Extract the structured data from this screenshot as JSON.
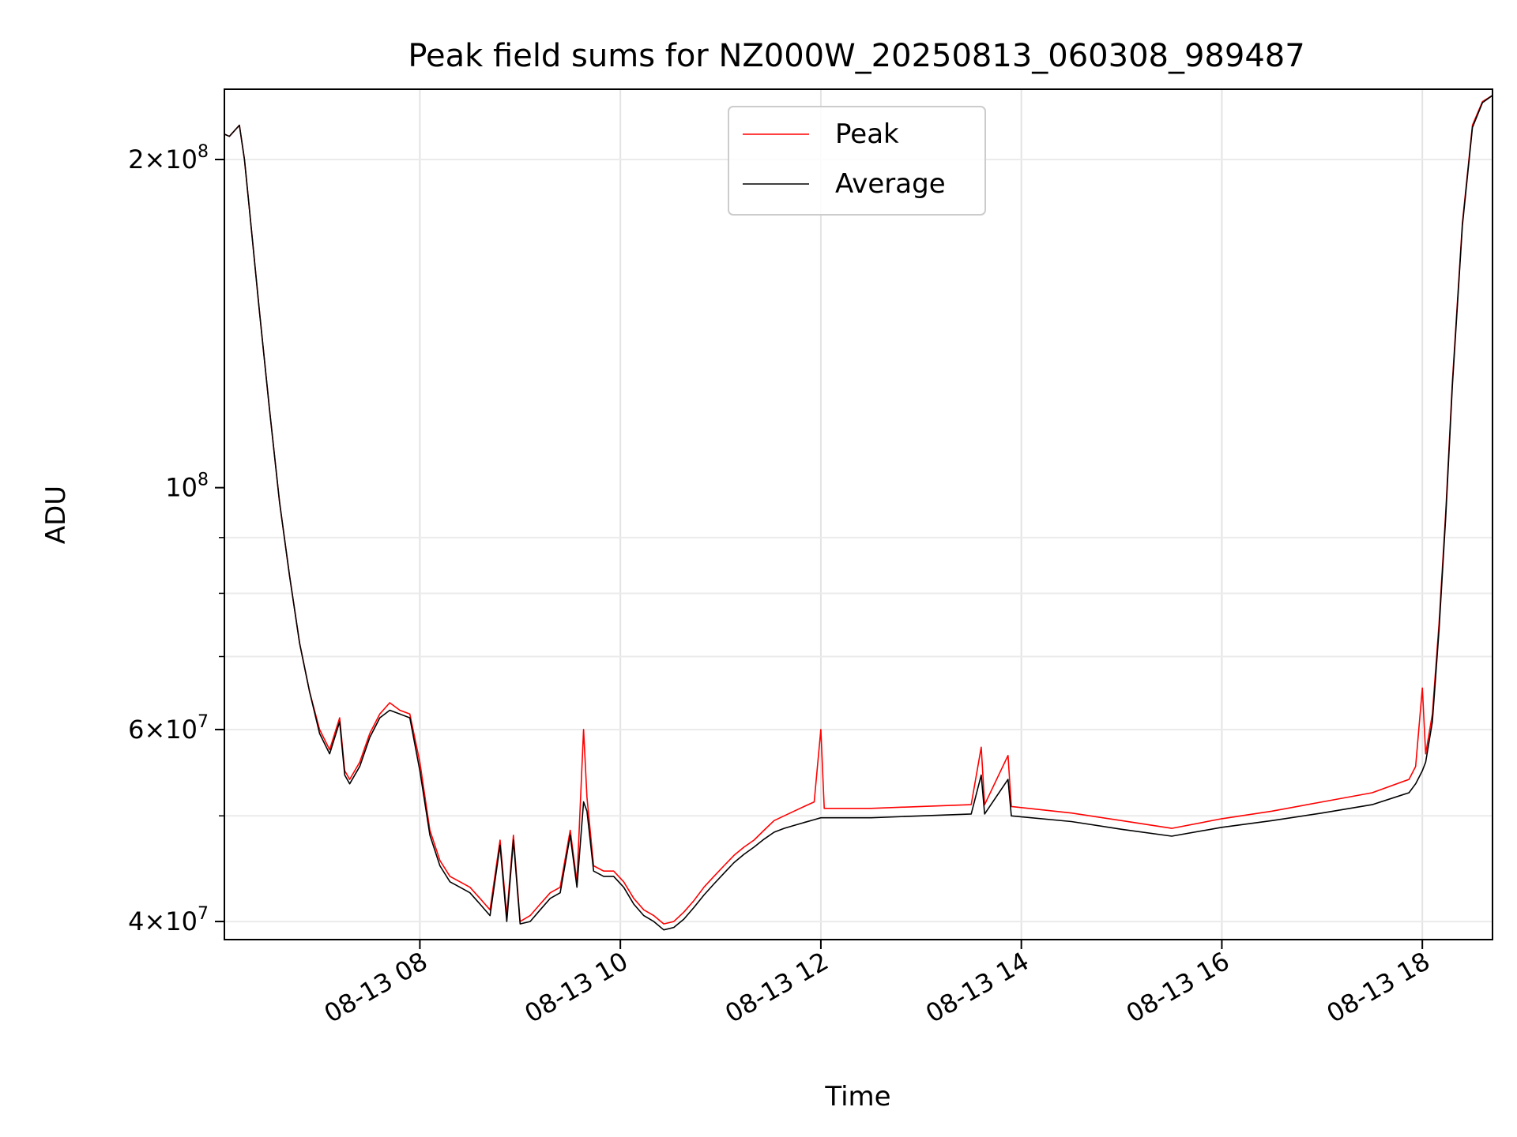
{
  "chart_data": {
    "type": "line",
    "title": "Peak field sums for NZ000W_20250813_060308_989487",
    "xlabel": "Time",
    "ylabel": "ADU",
    "xlim": [
      "2025-08-13 06:03",
      "2025-08-13 18:42"
    ],
    "ylim": [
      38500000,
      232000000
    ],
    "yscale": "log",
    "grid": true,
    "legend_position": "upper center",
    "x_ticks": [
      "08-13 08",
      "08-13 10",
      "08-13 12",
      "08-13 14",
      "08-13 16",
      "08-13 18"
    ],
    "y_ticks": [
      {
        "value": 40000000,
        "mantissa": "4",
        "exp": "7"
      },
      {
        "value": 60000000,
        "mantissa": "6",
        "exp": "7"
      },
      {
        "value": 100000000,
        "mantissa": "",
        "exp": "8"
      },
      {
        "value": 200000000,
        "mantissa": "2",
        "exp": "8"
      }
    ],
    "series": [
      {
        "name": "Peak",
        "color": "#ff0000",
        "points": [
          [
            "2025-08-13 06:03",
            211000000
          ],
          [
            "2025-08-13 06:06",
            210000000
          ],
          [
            "2025-08-13 06:12",
            215000000
          ],
          [
            "2025-08-13 06:15",
            200000000
          ],
          [
            "2025-08-13 06:18",
            180000000
          ],
          [
            "2025-08-13 06:24",
            145000000
          ],
          [
            "2025-08-13 06:30",
            118000000
          ],
          [
            "2025-08-13 06:36",
            97000000
          ],
          [
            "2025-08-13 06:42",
            83000000
          ],
          [
            "2025-08-13 06:48",
            72000000
          ],
          [
            "2025-08-13 06:54",
            65000000
          ],
          [
            "2025-08-13 07:00",
            60000000
          ],
          [
            "2025-08-13 07:06",
            57500000
          ],
          [
            "2025-08-13 07:12",
            61500000
          ],
          [
            "2025-08-13 07:15",
            55000000
          ],
          [
            "2025-08-13 07:18",
            54000000
          ],
          [
            "2025-08-13 07:24",
            56000000
          ],
          [
            "2025-08-13 07:30",
            59500000
          ],
          [
            "2025-08-13 07:36",
            62000000
          ],
          [
            "2025-08-13 07:42",
            63500000
          ],
          [
            "2025-08-13 07:48",
            62500000
          ],
          [
            "2025-08-13 07:54",
            62000000
          ],
          [
            "2025-08-13 08:00",
            56000000
          ],
          [
            "2025-08-13 08:06",
            48500000
          ],
          [
            "2025-08-13 08:12",
            45500000
          ],
          [
            "2025-08-13 08:18",
            44000000
          ],
          [
            "2025-08-13 08:24",
            43500000
          ],
          [
            "2025-08-13 08:30",
            43000000
          ],
          [
            "2025-08-13 08:36",
            42000000
          ],
          [
            "2025-08-13 08:42",
            41000000
          ],
          [
            "2025-08-13 08:48",
            47500000
          ],
          [
            "2025-08-13 08:52",
            40500000
          ],
          [
            "2025-08-13 08:56",
            48000000
          ],
          [
            "2025-08-13 09:00",
            40000000
          ],
          [
            "2025-08-13 09:06",
            40500000
          ],
          [
            "2025-08-13 09:12",
            41500000
          ],
          [
            "2025-08-13 09:18",
            42500000
          ],
          [
            "2025-08-13 09:24",
            43000000
          ],
          [
            "2025-08-13 09:30",
            48500000
          ],
          [
            "2025-08-13 09:34",
            43500000
          ],
          [
            "2025-08-13 09:38",
            60000000
          ],
          [
            "2025-08-13 09:40",
            52000000
          ],
          [
            "2025-08-13 09:44",
            45000000
          ],
          [
            "2025-08-13 09:50",
            44500000
          ],
          [
            "2025-08-13 09:56",
            44500000
          ],
          [
            "2025-08-13 10:02",
            43500000
          ],
          [
            "2025-08-13 10:08",
            42000000
          ],
          [
            "2025-08-13 10:14",
            41000000
          ],
          [
            "2025-08-13 10:20",
            40500000
          ],
          [
            "2025-08-13 10:26",
            39800000
          ],
          [
            "2025-08-13 10:32",
            40000000
          ],
          [
            "2025-08-13 10:38",
            40800000
          ],
          [
            "2025-08-13 10:44",
            41800000
          ],
          [
            "2025-08-13 10:50",
            43000000
          ],
          [
            "2025-08-13 10:56",
            44000000
          ],
          [
            "2025-08-13 11:02",
            45000000
          ],
          [
            "2025-08-13 11:08",
            46000000
          ],
          [
            "2025-08-13 11:14",
            46800000
          ],
          [
            "2025-08-13 11:20",
            47500000
          ],
          [
            "2025-08-13 11:26",
            48500000
          ],
          [
            "2025-08-13 11:32",
            49500000
          ],
          [
            "2025-08-13 11:38",
            50000000
          ],
          [
            "2025-08-13 11:44",
            50500000
          ],
          [
            "2025-08-13 11:50",
            51000000
          ],
          [
            "2025-08-13 11:56",
            51500000
          ],
          [
            "2025-08-13 12:00",
            60000000
          ],
          [
            "2025-08-13 12:02",
            50800000
          ],
          [
            "2025-08-13 12:30",
            50800000
          ],
          [
            "2025-08-13 13:00",
            51000000
          ],
          [
            "2025-08-13 13:30",
            51200000
          ],
          [
            "2025-08-13 13:36",
            57800000
          ],
          [
            "2025-08-13 13:38",
            51200000
          ],
          [
            "2025-08-13 13:52",
            56800000
          ],
          [
            "2025-08-13 13:54",
            51000000
          ],
          [
            "2025-08-13 14:30",
            50300000
          ],
          [
            "2025-08-13 15:00",
            49500000
          ],
          [
            "2025-08-13 15:30",
            48700000
          ],
          [
            "2025-08-13 16:00",
            49700000
          ],
          [
            "2025-08-13 16:30",
            50500000
          ],
          [
            "2025-08-13 17:00",
            51500000
          ],
          [
            "2025-08-13 17:30",
            52500000
          ],
          [
            "2025-08-13 17:52",
            54000000
          ],
          [
            "2025-08-13 17:56",
            55500000
          ],
          [
            "2025-08-13 18:00",
            65500000
          ],
          [
            "2025-08-13 18:02",
            57000000
          ],
          [
            "2025-08-13 18:06",
            62000000
          ],
          [
            "2025-08-13 18:10",
            75000000
          ],
          [
            "2025-08-13 18:14",
            95000000
          ],
          [
            "2025-08-13 18:18",
            125000000
          ],
          [
            "2025-08-13 18:24",
            175000000
          ],
          [
            "2025-08-13 18:30",
            215000000
          ],
          [
            "2025-08-13 18:36",
            226000000
          ],
          [
            "2025-08-13 18:42",
            229000000
          ]
        ]
      },
      {
        "name": "Average",
        "color": "#000000",
        "points": [
          [
            "2025-08-13 06:03",
            211000000
          ],
          [
            "2025-08-13 06:06",
            210000000
          ],
          [
            "2025-08-13 06:12",
            215000000
          ],
          [
            "2025-08-13 06:15",
            200000000
          ],
          [
            "2025-08-13 06:18",
            180000000
          ],
          [
            "2025-08-13 06:24",
            145000000
          ],
          [
            "2025-08-13 06:30",
            118000000
          ],
          [
            "2025-08-13 06:36",
            97000000
          ],
          [
            "2025-08-13 06:42",
            83000000
          ],
          [
            "2025-08-13 06:48",
            72000000
          ],
          [
            "2025-08-13 06:54",
            65000000
          ],
          [
            "2025-08-13 07:00",
            59500000
          ],
          [
            "2025-08-13 07:06",
            57000000
          ],
          [
            "2025-08-13 07:12",
            61000000
          ],
          [
            "2025-08-13 07:15",
            54500000
          ],
          [
            "2025-08-13 07:18",
            53500000
          ],
          [
            "2025-08-13 07:24",
            55500000
          ],
          [
            "2025-08-13 07:30",
            59000000
          ],
          [
            "2025-08-13 07:36",
            61500000
          ],
          [
            "2025-08-13 07:42",
            62500000
          ],
          [
            "2025-08-13 07:48",
            62000000
          ],
          [
            "2025-08-13 07:54",
            61500000
          ],
          [
            "2025-08-13 08:00",
            55000000
          ],
          [
            "2025-08-13 08:06",
            48000000
          ],
          [
            "2025-08-13 08:12",
            45000000
          ],
          [
            "2025-08-13 08:18",
            43500000
          ],
          [
            "2025-08-13 08:24",
            43000000
          ],
          [
            "2025-08-13 08:30",
            42500000
          ],
          [
            "2025-08-13 08:36",
            41500000
          ],
          [
            "2025-08-13 08:42",
            40500000
          ],
          [
            "2025-08-13 08:48",
            47000000
          ],
          [
            "2025-08-13 08:52",
            40000000
          ],
          [
            "2025-08-13 08:56",
            47500000
          ],
          [
            "2025-08-13 09:00",
            39800000
          ],
          [
            "2025-08-13 09:06",
            40000000
          ],
          [
            "2025-08-13 09:12",
            41000000
          ],
          [
            "2025-08-13 09:18",
            42000000
          ],
          [
            "2025-08-13 09:24",
            42500000
          ],
          [
            "2025-08-13 09:30",
            48000000
          ],
          [
            "2025-08-13 09:34",
            43000000
          ],
          [
            "2025-08-13 09:38",
            51500000
          ],
          [
            "2025-08-13 09:40",
            50500000
          ],
          [
            "2025-08-13 09:44",
            44500000
          ],
          [
            "2025-08-13 09:50",
            44000000
          ],
          [
            "2025-08-13 09:56",
            44000000
          ],
          [
            "2025-08-13 10:02",
            43000000
          ],
          [
            "2025-08-13 10:08",
            41500000
          ],
          [
            "2025-08-13 10:14",
            40500000
          ],
          [
            "2025-08-13 10:20",
            40000000
          ],
          [
            "2025-08-13 10:26",
            39300000
          ],
          [
            "2025-08-13 10:32",
            39500000
          ],
          [
            "2025-08-13 10:38",
            40200000
          ],
          [
            "2025-08-13 10:44",
            41200000
          ],
          [
            "2025-08-13 10:50",
            42300000
          ],
          [
            "2025-08-13 10:56",
            43300000
          ],
          [
            "2025-08-13 11:02",
            44300000
          ],
          [
            "2025-08-13 11:08",
            45300000
          ],
          [
            "2025-08-13 11:14",
            46100000
          ],
          [
            "2025-08-13 11:20",
            46800000
          ],
          [
            "2025-08-13 11:26",
            47600000
          ],
          [
            "2025-08-13 11:32",
            48300000
          ],
          [
            "2025-08-13 11:38",
            48700000
          ],
          [
            "2025-08-13 11:44",
            49000000
          ],
          [
            "2025-08-13 11:50",
            49300000
          ],
          [
            "2025-08-13 11:56",
            49600000
          ],
          [
            "2025-08-13 12:00",
            49800000
          ],
          [
            "2025-08-13 12:02",
            49800000
          ],
          [
            "2025-08-13 12:30",
            49800000
          ],
          [
            "2025-08-13 13:00",
            50000000
          ],
          [
            "2025-08-13 13:30",
            50200000
          ],
          [
            "2025-08-13 13:36",
            54500000
          ],
          [
            "2025-08-13 13:38",
            50200000
          ],
          [
            "2025-08-13 13:52",
            54000000
          ],
          [
            "2025-08-13 13:54",
            50000000
          ],
          [
            "2025-08-13 14:30",
            49400000
          ],
          [
            "2025-08-13 15:00",
            48600000
          ],
          [
            "2025-08-13 15:30",
            47900000
          ],
          [
            "2025-08-13 16:00",
            48800000
          ],
          [
            "2025-08-13 16:30",
            49500000
          ],
          [
            "2025-08-13 17:00",
            50300000
          ],
          [
            "2025-08-13 17:30",
            51200000
          ],
          [
            "2025-08-13 17:52",
            52500000
          ],
          [
            "2025-08-13 17:56",
            53500000
          ],
          [
            "2025-08-13 18:00",
            55000000
          ],
          [
            "2025-08-13 18:02",
            56000000
          ],
          [
            "2025-08-13 18:06",
            61000000
          ],
          [
            "2025-08-13 18:10",
            74000000
          ],
          [
            "2025-08-13 18:14",
            94000000
          ],
          [
            "2025-08-13 18:18",
            124000000
          ],
          [
            "2025-08-13 18:24",
            174000000
          ],
          [
            "2025-08-13 18:30",
            214000000
          ],
          [
            "2025-08-13 18:36",
            225500000
          ],
          [
            "2025-08-13 18:42",
            229000000
          ]
        ]
      }
    ]
  }
}
